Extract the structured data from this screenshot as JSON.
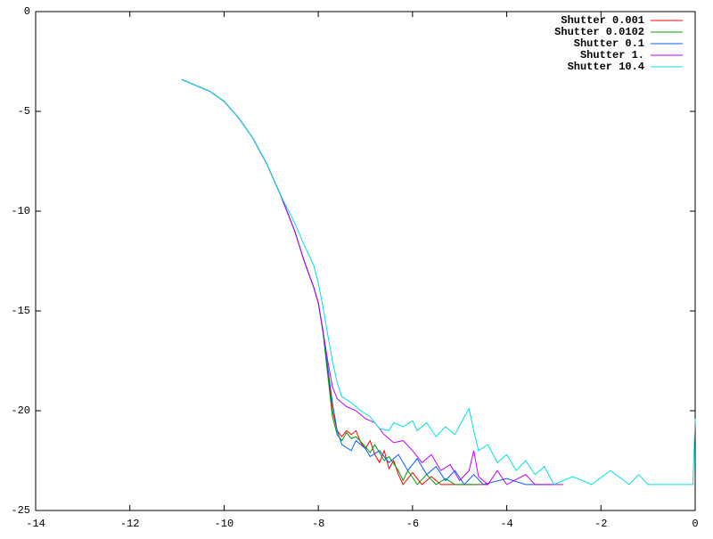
{
  "chart_data": {
    "type": "line",
    "xlim": [
      -14,
      0
    ],
    "ylim": [
      -25,
      0
    ],
    "xticks": [
      -14,
      -12,
      -10,
      -8,
      -6,
      -4,
      -2,
      0
    ],
    "yticks": [
      -25,
      -20,
      -15,
      -10,
      -5,
      0
    ],
    "legend": "top-right",
    "series": [
      {
        "name": "Shutter 0.001",
        "color": "#ff0000",
        "x": [
          -10.9,
          -10.6,
          -10.3,
          -10,
          -9.7,
          -9.4,
          -9.1,
          -8.8,
          -8.5,
          -8.3,
          -8.1,
          -8,
          -7.9,
          -7.8,
          -7.7,
          -7.6,
          -7.5,
          -7.4,
          -7.3,
          -7.2,
          -7.1,
          -7.0,
          -6.9,
          -6.8,
          -6.7,
          -6.6,
          -6.5,
          -6.4,
          -6.3,
          -6.2,
          -6.0,
          -5.8,
          -5.6,
          -5.4,
          -5.0,
          -4.4
        ],
        "values": [
          -3.4,
          -3.7,
          -4.0,
          -4.5,
          -5.3,
          -6.3,
          -7.6,
          -9.2,
          -11.0,
          -12.5,
          -13.8,
          -14.6,
          -16.0,
          -18.0,
          -20.0,
          -21.0,
          -21.3,
          -21.0,
          -21.2,
          -21.0,
          -21.6,
          -21.9,
          -21.5,
          -22.2,
          -22.6,
          -22.0,
          -22.9,
          -22.5,
          -23.2,
          -23.7,
          -23.1,
          -23.7,
          -23.3,
          -23.7,
          -23.7,
          -23.7
        ]
      },
      {
        "name": "Shutter 0.0102",
        "color": "#00a000",
        "x": [
          -10.9,
          -10.6,
          -10.3,
          -10,
          -9.7,
          -9.4,
          -9.1,
          -8.8,
          -8.5,
          -8.3,
          -8.1,
          -8,
          -7.9,
          -7.8,
          -7.7,
          -7.6,
          -7.5,
          -7.4,
          -7.3,
          -7.2,
          -7.0,
          -6.9,
          -6.8,
          -6.6,
          -6.5,
          -6.3,
          -6.2,
          -6.1,
          -5.9,
          -5.7,
          -5.5,
          -5.3,
          -5.1,
          -4.6
        ],
        "values": [
          -3.4,
          -3.7,
          -4.0,
          -4.5,
          -5.3,
          -6.3,
          -7.6,
          -9.2,
          -11.0,
          -12.5,
          -13.8,
          -14.6,
          -16.1,
          -18.2,
          -20.3,
          -21.2,
          -21.5,
          -21.1,
          -21.4,
          -21.3,
          -21.8,
          -22.1,
          -21.7,
          -22.5,
          -22.3,
          -23.0,
          -23.5,
          -23.0,
          -23.7,
          -23.2,
          -23.7,
          -23.4,
          -23.7,
          -23.7
        ]
      },
      {
        "name": "Shutter 0.1",
        "color": "#0060ff",
        "x": [
          -10.9,
          -10.6,
          -10.3,
          -10,
          -9.7,
          -9.4,
          -9.1,
          -8.8,
          -8.5,
          -8.3,
          -8.1,
          -8,
          -7.9,
          -7.8,
          -7.7,
          -7.6,
          -7.5,
          -7.3,
          -7.2,
          -7.0,
          -6.9,
          -6.7,
          -6.5,
          -6.3,
          -6.1,
          -5.9,
          -5.7,
          -5.5,
          -5.3,
          -5.1,
          -4.9,
          -4.7,
          -4.5,
          -4.0,
          -3.6,
          -3.0
        ],
        "values": [
          -3.4,
          -3.7,
          -4.0,
          -4.5,
          -5.3,
          -6.3,
          -7.6,
          -9.2,
          -11.0,
          -12.5,
          -13.8,
          -14.6,
          -16.0,
          -17.8,
          -19.6,
          -21.0,
          -21.7,
          -22.0,
          -21.5,
          -21.9,
          -22.3,
          -22.0,
          -22.6,
          -22.2,
          -23.0,
          -22.4,
          -23.2,
          -22.8,
          -23.5,
          -23.0,
          -23.7,
          -23.2,
          -23.7,
          -23.4,
          -23.7,
          -23.7
        ]
      },
      {
        "name": "Shutter 1.",
        "color": "#c000ff",
        "x": [
          -10.9,
          -10.6,
          -10.3,
          -10,
          -9.7,
          -9.4,
          -9.1,
          -8.8,
          -8.5,
          -8.3,
          -8.1,
          -8,
          -7.9,
          -7.8,
          -7.7,
          -7.6,
          -7.4,
          -7.2,
          -7.0,
          -6.8,
          -6.6,
          -6.4,
          -6.2,
          -6.0,
          -5.8,
          -5.6,
          -5.4,
          -5.2,
          -5.0,
          -4.8,
          -4.7,
          -4.6,
          -4.4,
          -4.2,
          -4.0,
          -3.6,
          -3.4,
          -2.8
        ],
        "values": [
          -3.4,
          -3.7,
          -4.0,
          -4.5,
          -5.3,
          -6.3,
          -7.6,
          -9.2,
          -11.0,
          -12.5,
          -13.8,
          -14.6,
          -16.0,
          -17.5,
          -18.8,
          -19.4,
          -19.8,
          -20.0,
          -20.4,
          -20.6,
          -21.2,
          -21.6,
          -21.5,
          -22.0,
          -22.6,
          -22.2,
          -23.0,
          -22.7,
          -23.5,
          -23.0,
          -22.0,
          -23.3,
          -23.7,
          -23.0,
          -23.7,
          -23.2,
          -23.7,
          -23.7
        ]
      },
      {
        "name": "Shutter 10.4",
        "color": "#00e0e0",
        "x": [
          -10.9,
          -10.6,
          -10.3,
          -10,
          -9.7,
          -9.4,
          -9.1,
          -8.8,
          -8.5,
          -8.3,
          -8.1,
          -8,
          -7.9,
          -7.8,
          -7.7,
          -7.6,
          -7.5,
          -7.3,
          -7.1,
          -6.9,
          -6.7,
          -6.5,
          -6.4,
          -6.2,
          -6.0,
          -5.9,
          -5.7,
          -5.5,
          -5.3,
          -5.1,
          -4.9,
          -4.8,
          -4.7,
          -4.6,
          -4.4,
          -4.2,
          -4.0,
          -3.8,
          -3.6,
          -3.4,
          -3.2,
          -3.0,
          -2.6,
          -2.2,
          -1.8,
          -1.4,
          -1.2,
          -1.0,
          -0.05,
          0
        ],
        "values": [
          -3.4,
          -3.7,
          -4.0,
          -4.5,
          -5.3,
          -6.3,
          -7.6,
          -9.2,
          -10.6,
          -11.7,
          -12.7,
          -13.6,
          -14.8,
          -16.2,
          -17.5,
          -18.6,
          -19.3,
          -19.6,
          -20.0,
          -20.3,
          -20.9,
          -21.0,
          -20.6,
          -20.8,
          -20.5,
          -21.0,
          -20.6,
          -21.3,
          -20.8,
          -21.2,
          -20.3,
          -19.9,
          -21.0,
          -22.0,
          -21.7,
          -22.6,
          -22.2,
          -23.0,
          -22.5,
          -23.2,
          -22.8,
          -23.7,
          -23.3,
          -23.7,
          -23.0,
          -23.7,
          -23.2,
          -23.7,
          -23.7,
          -20.4
        ]
      }
    ]
  }
}
